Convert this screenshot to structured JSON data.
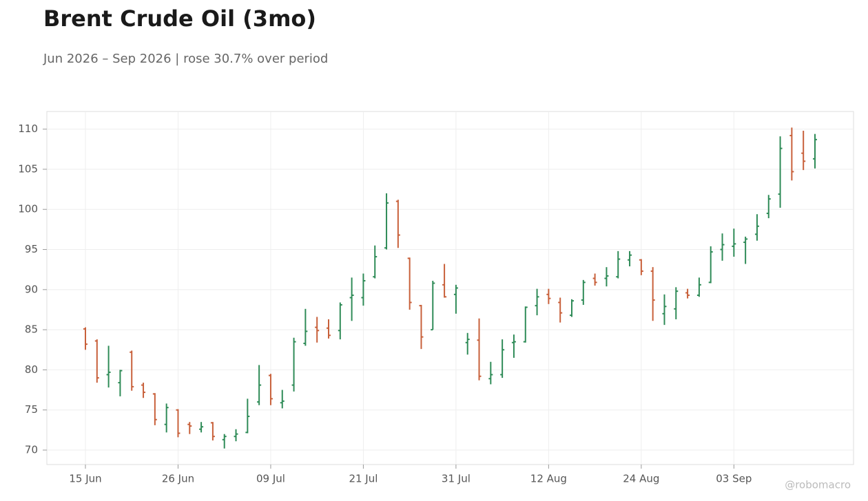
{
  "chart_data": {
    "type": "ohlc",
    "title": "Brent Crude Oil (3mo)",
    "subtitle": "Jun 2026 – Sep 2026 | rose 30.7% over period",
    "watermark": "@robomacro",
    "categories": [
      "15 Jun",
      null,
      null,
      null,
      null,
      null,
      null,
      null,
      "26 Jun",
      null,
      null,
      null,
      null,
      null,
      null,
      null,
      "09 Jul",
      null,
      null,
      null,
      null,
      null,
      null,
      null,
      "21 Jul",
      null,
      null,
      null,
      null,
      null,
      null,
      null,
      "31 Jul",
      null,
      null,
      null,
      null,
      null,
      null,
      null,
      "12 Aug",
      null,
      null,
      null,
      null,
      null,
      null,
      null,
      "24 Aug",
      null,
      null,
      null,
      null,
      null,
      null,
      null,
      "03 Sep",
      null,
      null,
      null,
      null,
      null,
      null,
      null
    ],
    "open": [
      85.1,
      83.6,
      79.4,
      78.4,
      82.2,
      78.1,
      77.0,
      73.2,
      75.0,
      73.2,
      72.6,
      73.4,
      71.3,
      71.7,
      72.2,
      76.0,
      79.3,
      75.9,
      78.1,
      83.3,
      85.3,
      85.2,
      84.9,
      89.0,
      89.0,
      91.6,
      95.2,
      101.0,
      93.9,
      88.0,
      85.0,
      90.6,
      89.4,
      83.4,
      83.7,
      78.9,
      79.4,
      83.4,
      83.5,
      88.0,
      89.4,
      88.4,
      86.8,
      88.7,
      91.4,
      91.4,
      91.6,
      93.7,
      93.7,
      92.3,
      87.0,
      87.6,
      89.6,
      89.3,
      90.9,
      95.0,
      95.4,
      95.9,
      96.9,
      99.5,
      101.9,
      109.2,
      107.0,
      106.3
    ],
    "high": [
      85.3,
      83.8,
      83.0,
      80.0,
      82.4,
      78.4,
      77.1,
      75.8,
      75.1,
      73.5,
      73.5,
      73.5,
      72.0,
      72.6,
      76.4,
      80.6,
      79.5,
      77.5,
      84.0,
      87.6,
      86.6,
      86.3,
      88.4,
      91.5,
      92.0,
      95.5,
      102.0,
      101.2,
      94.0,
      88.1,
      91.1,
      93.2,
      90.6,
      84.6,
      86.4,
      81.0,
      83.8,
      84.4,
      87.9,
      90.1,
      90.1,
      89.0,
      88.8,
      91.2,
      92.0,
      92.8,
      94.8,
      94.8,
      93.8,
      92.8,
      89.4,
      90.3,
      90.1,
      91.5,
      95.4,
      97.0,
      97.6,
      96.6,
      99.4,
      101.8,
      109.1,
      110.2,
      109.8,
      109.4
    ],
    "low": [
      82.5,
      78.4,
      77.8,
      76.7,
      77.4,
      76.5,
      73.1,
      72.2,
      71.6,
      72.0,
      72.2,
      71.2,
      70.2,
      71.1,
      72.1,
      75.6,
      75.6,
      75.2,
      77.3,
      83.0,
      83.4,
      83.9,
      83.8,
      86.1,
      88.0,
      91.4,
      95.0,
      95.2,
      87.5,
      82.6,
      85.0,
      89.0,
      87.0,
      81.9,
      78.7,
      78.2,
      79.0,
      81.5,
      83.4,
      86.8,
      88.2,
      85.9,
      86.6,
      88.1,
      90.5,
      90.4,
      91.4,
      92.9,
      91.8,
      86.1,
      85.6,
      86.3,
      88.9,
      89.1,
      90.8,
      93.6,
      94.1,
      93.2,
      96.1,
      98.9,
      100.2,
      103.6,
      104.9,
      105.1
    ],
    "close": [
      83.2,
      79.0,
      79.7,
      79.9,
      77.9,
      77.2,
      73.8,
      75.3,
      72.1,
      73.0,
      72.9,
      71.7,
      71.7,
      72.0,
      74.2,
      78.1,
      76.4,
      76.1,
      83.5,
      84.8,
      84.9,
      84.3,
      88.1,
      89.3,
      91.1,
      94.1,
      100.8,
      96.8,
      88.4,
      84.1,
      90.8,
      89.1,
      90.2,
      83.8,
      79.2,
      79.4,
      82.5,
      83.5,
      87.8,
      89.1,
      88.9,
      87.1,
      88.6,
      90.9,
      90.9,
      91.7,
      93.8,
      94.3,
      92.3,
      88.7,
      87.9,
      89.8,
      89.3,
      90.6,
      94.7,
      95.6,
      95.7,
      96.3,
      97.9,
      101.3,
      107.6,
      104.7,
      106.0,
      108.7
    ],
    "up_color": "#2e8b57",
    "down_color": "#c8603a",
    "ylim": [
      68.2,
      112.2
    ],
    "yticks": [
      70,
      75,
      80,
      85,
      90,
      95,
      100,
      105,
      110
    ],
    "grid": true
  }
}
